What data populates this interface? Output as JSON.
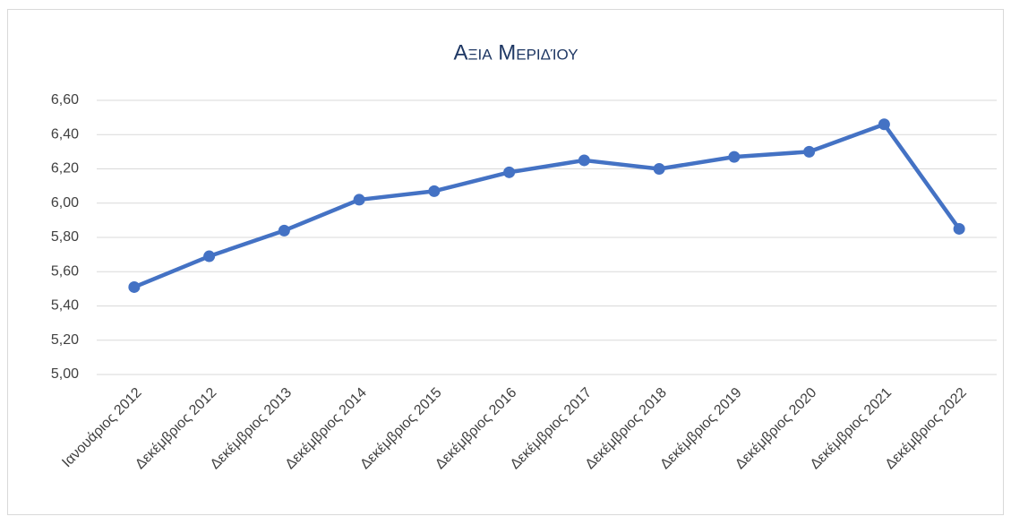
{
  "chart_data": {
    "type": "line",
    "title": "Αξια Μεριδίου",
    "categories": [
      "Ιανουάριος 2012",
      "Δεκέμβριος 2012",
      "Δεκέμβριος 2013",
      "Δεκέμβριος 2014",
      "Δεκέμβριος 2015",
      "Δεκέμβριος 2016",
      "Δεκέμβριος 2017",
      "Δεκέμβριος 2018",
      "Δεκέμβριος 2019",
      "Δεκέμβριος 2020",
      "Δεκέμβριος 2021",
      "Δεκέμβριος 2022"
    ],
    "series": [
      {
        "color": "#4472c4",
        "values": [
          5.51,
          5.69,
          5.84,
          6.02,
          6.07,
          6.18,
          6.25,
          6.2,
          6.27,
          6.3,
          6.46,
          5.85
        ]
      }
    ],
    "ylim": [
      5.0,
      6.6
    ],
    "yticks": [
      {
        "value": 5.0,
        "label": "5,00"
      },
      {
        "value": 5.2,
        "label": "5,20"
      },
      {
        "value": 5.4,
        "label": "5,40"
      },
      {
        "value": 5.6,
        "label": "5,60"
      },
      {
        "value": 5.8,
        "label": "5,80"
      },
      {
        "value": 6.0,
        "label": "6,00"
      },
      {
        "value": 6.2,
        "label": "6,20"
      },
      {
        "value": 6.4,
        "label": "6,40"
      },
      {
        "value": 6.6,
        "label": "6,60"
      }
    ],
    "grid": true
  }
}
